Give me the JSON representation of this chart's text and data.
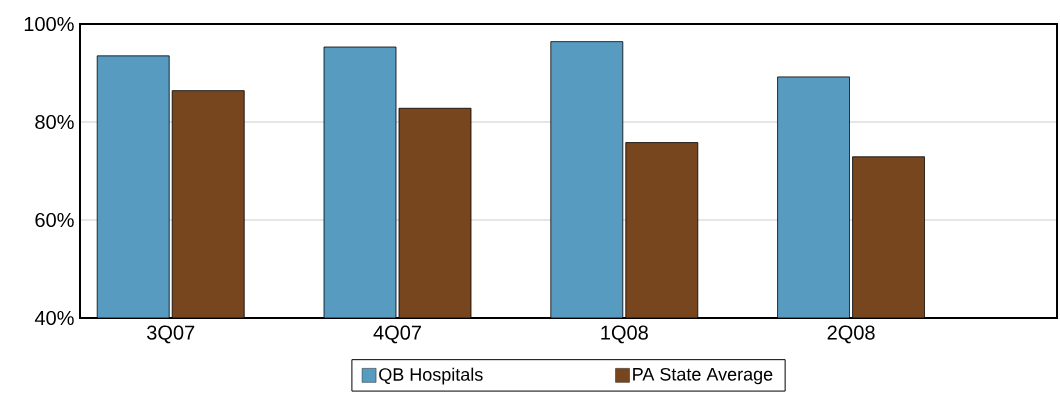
{
  "chart_data": {
    "type": "bar",
    "categories": [
      "3Q07",
      "4Q07",
      "1Q08",
      "2Q08"
    ],
    "series": [
      {
        "name": "QB Hospitals",
        "color": "#579bc0",
        "values": [
          93.5,
          95.3,
          96.4,
          89.2
        ]
      },
      {
        "name": "PA State Average",
        "color": "#78461e",
        "values": [
          86.4,
          82.8,
          75.8,
          72.9
        ]
      }
    ],
    "ylim": [
      40,
      100
    ],
    "yticks": [
      {
        "value": 40,
        "label": "40%"
      },
      {
        "value": 60,
        "label": "60%"
      },
      {
        "value": 80,
        "label": "80%"
      },
      {
        "value": 100,
        "label": "100%"
      }
    ],
    "grid": "y",
    "legend": "bottom"
  }
}
